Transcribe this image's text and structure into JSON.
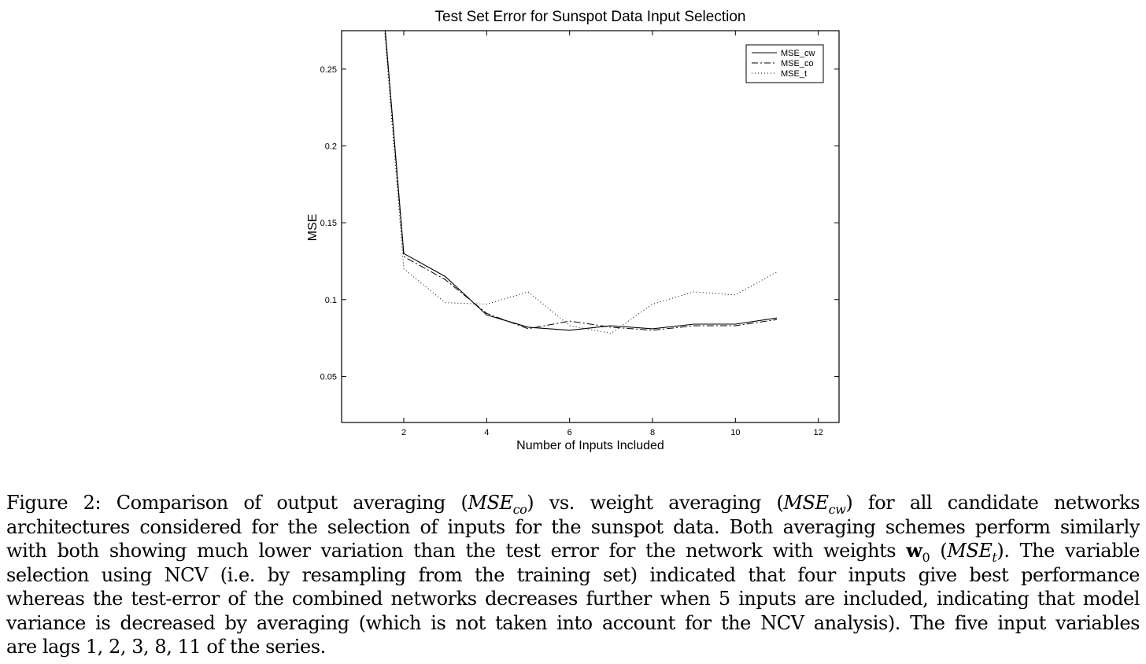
{
  "chart_data": {
    "type": "line",
    "title": "Test Set Error for Sunspot Data Input Selection",
    "xlabel": "Number of Inputs Included",
    "ylabel": "MSE",
    "xlim": [
      0.5,
      12.5
    ],
    "ylim": [
      0.02,
      0.275
    ],
    "xticks": [
      2,
      4,
      6,
      8,
      10,
      12
    ],
    "yticks": [
      0.05,
      0.1,
      0.15,
      0.2,
      0.25
    ],
    "xtick_labels": [
      "2",
      "4",
      "6",
      "8",
      "10",
      "12"
    ],
    "ytick_labels": [
      "0.05",
      "0.1",
      "0.15",
      "0.2",
      "0.25"
    ],
    "grid": false,
    "legend": "top-right",
    "series": [
      {
        "name": "MSE_cw",
        "style": "solid",
        "x": [
          1,
          2,
          3,
          4,
          5,
          6,
          7,
          8,
          9,
          10,
          11
        ],
        "y": [
          0.455,
          0.13,
          0.115,
          0.09,
          0.082,
          0.08,
          0.083,
          0.081,
          0.084,
          0.084,
          0.088
        ]
      },
      {
        "name": "MSE_co",
        "style": "dashdot",
        "x": [
          1,
          2,
          3,
          4,
          5,
          6,
          7,
          8,
          9,
          10,
          11
        ],
        "y": [
          0.455,
          0.128,
          0.113,
          0.091,
          0.081,
          0.086,
          0.082,
          0.08,
          0.083,
          0.083,
          0.087
        ]
      },
      {
        "name": "MSE_t",
        "style": "dotted",
        "x": [
          1,
          2,
          3,
          4,
          5,
          6,
          7,
          8,
          9,
          10,
          11
        ],
        "y": [
          0.455,
          0.12,
          0.098,
          0.097,
          0.105,
          0.083,
          0.078,
          0.097,
          0.105,
          0.103,
          0.118
        ]
      }
    ]
  },
  "caption": {
    "lines": [
      [
        {
          "t": "Figure 2: Comparison of output averaging ("
        },
        {
          "t": "MSE",
          "i": true
        },
        {
          "t": "co",
          "sub": true
        },
        {
          "t": ") vs. weight averaging ("
        },
        {
          "t": "MSE",
          "i": true
        },
        {
          "t": "cw",
          "sub": true
        },
        {
          "t": ") for all candidate networks"
        }
      ],
      [
        {
          "t": "architectures considered for the selection of inputs for the sunspot data. Both averaging schemes perform similarly"
        }
      ],
      [
        {
          "t": "with both showing much lower variation than the test error for the network with weights "
        },
        {
          "t": "w",
          "b": true
        },
        {
          "t": "0",
          "sub": true,
          "ni": true
        },
        {
          "t": " ("
        },
        {
          "t": "MSE",
          "i": true
        },
        {
          "t": "t",
          "sub": true
        },
        {
          "t": "). The variable"
        }
      ],
      [
        {
          "t": "selection using NCV (i.e. by resampling from the training set) indicated that four inputs give best performance"
        }
      ],
      [
        {
          "t": "whereas the test-error of the combined networks decreases further when 5 inputs are included, indicating that model"
        }
      ],
      [
        {
          "t": "variance is decreased by averaging (which is not taken into account for the NCV analysis). The five input variables"
        }
      ],
      [
        {
          "t": "are lags 1, 2, 3, 8, 11 of the series."
        }
      ]
    ]
  }
}
